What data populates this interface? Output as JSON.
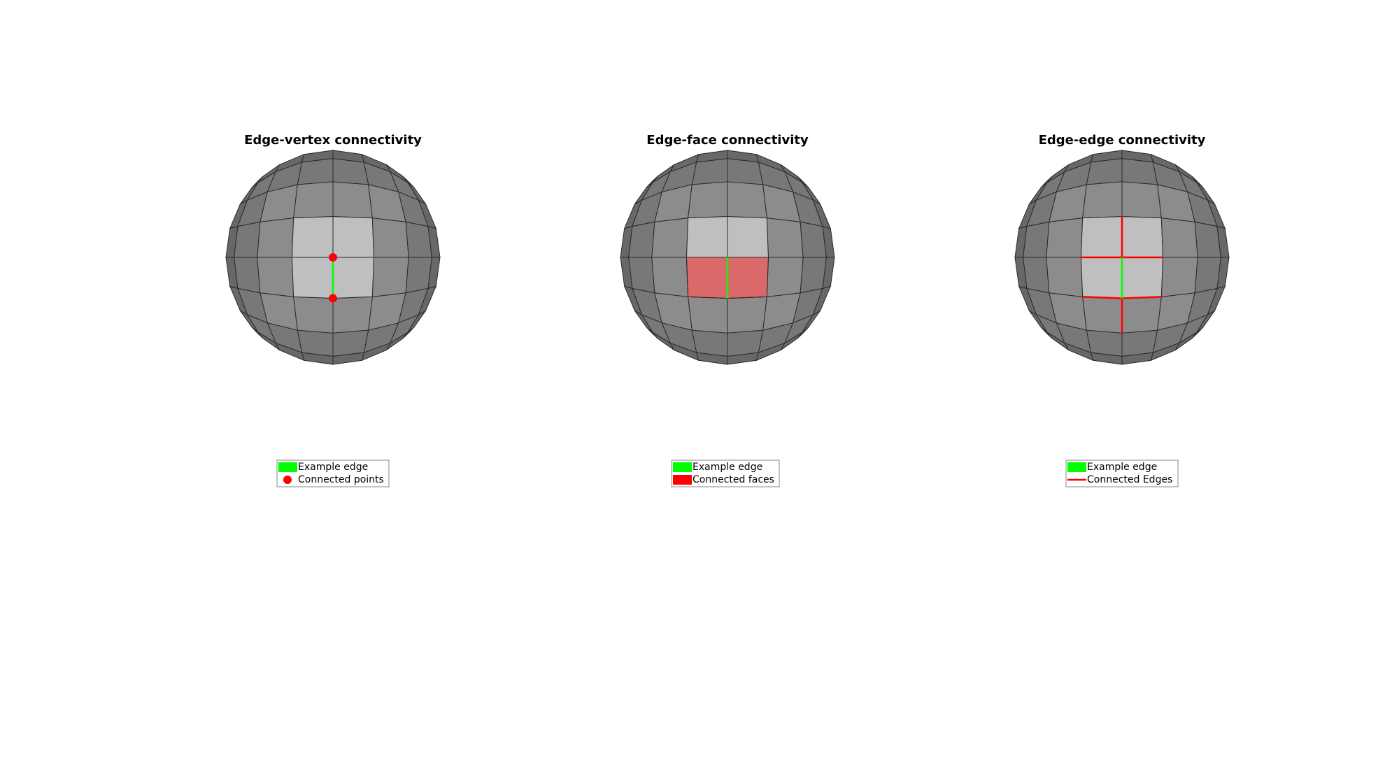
{
  "panels": [
    {
      "title": "Edge-vertex connectivity",
      "legend": [
        "Example edge",
        "Connected points"
      ]
    },
    {
      "title": "Edge-face connectivity",
      "legend": [
        "Example edge",
        "Connected faces"
      ]
    },
    {
      "title": "Edge-edge connectivity",
      "legend": [
        "Example edge",
        "Connected Edges"
      ]
    }
  ]
}
